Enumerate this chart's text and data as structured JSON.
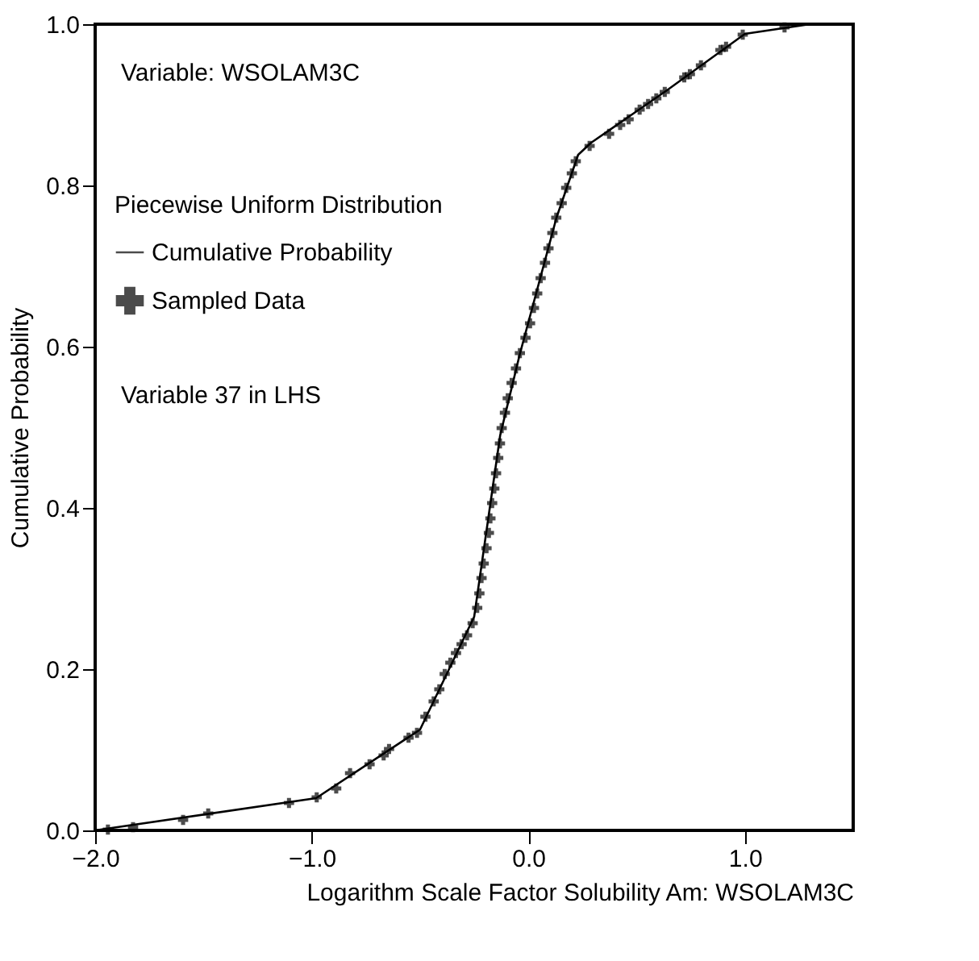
{
  "chart_data": {
    "type": "line",
    "xlabel": "Logarithm Scale Factor Solubility Am: WSOLAM3C",
    "ylabel": "Cumulative  Probability",
    "legend_title": "Piecewise Uniform Distribution",
    "legend": "top left",
    "annotations": [
      "Variable: WSOLAM3C",
      "Variable 37 in LHS"
    ],
    "xlim": [
      -2.0,
      1.5
    ],
    "ylim": [
      0.0,
      1.0
    ],
    "xticks": [
      {
        "value": -2,
        "label": "−2.0"
      },
      {
        "value": -1,
        "label": "−1.0"
      },
      {
        "value": 0,
        "label": "0.0"
      },
      {
        "value": 1,
        "label": "1.0"
      }
    ],
    "yticks": [
      {
        "value": 0,
        "label": "0.0"
      },
      {
        "value": 0.2,
        "label": "0.2"
      },
      {
        "value": 0.4,
        "label": "0.4"
      },
      {
        "value": 0.6,
        "label": "0.6"
      },
      {
        "value": 0.8,
        "label": "0.8"
      },
      {
        "value": 1,
        "label": "1.0"
      }
    ],
    "grid": false,
    "series": [
      {
        "name": "Cumulative Probability",
        "color": "#000000",
        "line_style": "solid",
        "marker": "none",
        "x": [
          -2.0,
          -0.98,
          -0.5,
          -0.25,
          -0.13,
          -0.04,
          0.06,
          0.13,
          0.23,
          0.29,
          0.64,
          1.0,
          1.3
        ],
        "values": [
          0.0,
          0.04,
          0.125,
          0.265,
          0.49,
          0.59,
          0.69,
          0.76,
          0.838,
          0.853,
          0.918,
          0.988,
          1.0
        ]
      },
      {
        "name": "Sampled Data",
        "type": "scatter",
        "color": "#000000",
        "marker": "cross",
        "x": [
          -1.941,
          -1.825,
          -1.594,
          -1.478,
          -1.105,
          -0.977,
          -0.887,
          -0.823,
          -0.733,
          -0.668,
          -0.643,
          -0.553,
          -0.514,
          -0.475,
          -0.437,
          -0.411,
          -0.386,
          -0.36,
          -0.334,
          -0.308,
          -0.283,
          -0.257,
          -0.236,
          -0.226,
          -0.216,
          -0.206,
          -0.193,
          -0.182,
          -0.175,
          -0.167,
          -0.157,
          -0.149,
          -0.139,
          -0.131,
          -0.123,
          -0.108,
          -0.095,
          -0.077,
          -0.057,
          -0.039,
          -0.013,
          0.008,
          0.026,
          0.041,
          0.057,
          0.077,
          0.093,
          0.111,
          0.129,
          0.154,
          0.175,
          0.201,
          0.219,
          0.283,
          0.373,
          0.424,
          0.463,
          0.514,
          0.553,
          0.591,
          0.63,
          0.72,
          0.746,
          0.797,
          0.887,
          0.913,
          0.99,
          1.183
        ],
        "values": [
          0.001,
          0.004,
          0.013,
          0.021,
          0.034,
          0.041,
          0.052,
          0.071,
          0.082,
          0.093,
          0.101,
          0.115,
          0.121,
          0.141,
          0.16,
          0.175,
          0.194,
          0.208,
          0.22,
          0.231,
          0.242,
          0.257,
          0.276,
          0.294,
          0.313,
          0.331,
          0.35,
          0.369,
          0.387,
          0.406,
          0.424,
          0.443,
          0.462,
          0.48,
          0.499,
          0.518,
          0.536,
          0.555,
          0.573,
          0.592,
          0.611,
          0.629,
          0.648,
          0.666,
          0.685,
          0.704,
          0.722,
          0.741,
          0.76,
          0.778,
          0.797,
          0.815,
          0.83,
          0.849,
          0.864,
          0.875,
          0.882,
          0.894,
          0.901,
          0.908,
          0.916,
          0.934,
          0.938,
          0.949,
          0.968,
          0.972,
          0.987,
          0.996
        ]
      }
    ]
  }
}
